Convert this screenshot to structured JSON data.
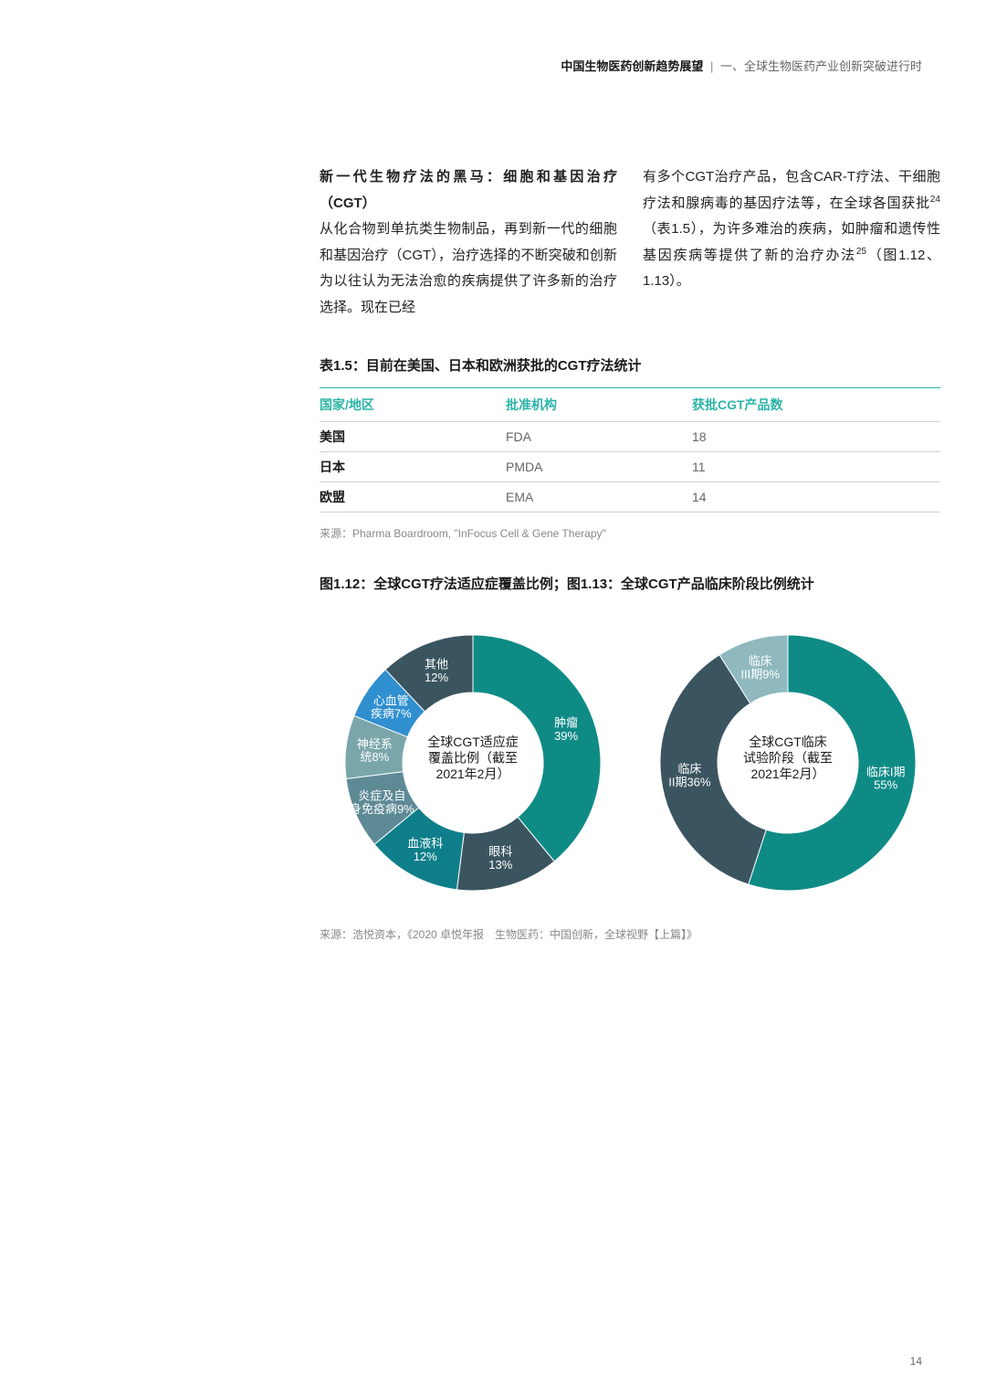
{
  "header": {
    "title_bold": "中国生物医药创新趋势展望",
    "separator": "|",
    "subtitle": "一、全球生物医药产业创新突破进行时"
  },
  "section": {
    "heading": "新一代生物疗法的黑马：细胞和基因治疗（CGT）",
    "para_left": "从化合物到单抗类生物制品，再到新一代的细胞和基因治疗（CGT），治疗选择的不断突破和创新为以往认为无法治愈的疾病提供了许多新的治疗选择。现在已经",
    "para_right_a": "有多个CGT治疗产品，包含CAR-T疗法、干细胞疗法和腺病毒的基因疗法等，在全球各国获批",
    "sup1": "24",
    "para_right_b": "（表1.5），为许多难治的疾病，如肿瘤和遗传性基因疾病等提供了新的治疗办法",
    "sup2": "25",
    "para_right_c": "（图1.12、1.13）。"
  },
  "table": {
    "title": "表1.5：目前在美国、日本和欧洲获批的CGT疗法统计",
    "columns": [
      "国家/地区",
      "批准机构",
      "获批CGT产品数"
    ],
    "rows": [
      [
        "美国",
        "FDA",
        "18"
      ],
      [
        "日本",
        "PMDA",
        "11"
      ],
      [
        "欧盟",
        "EMA",
        "14"
      ]
    ],
    "source": "来源：Pharma Boardroom, \"InFocus Cell & Gene Therapy\""
  },
  "charts": {
    "title": "图1.12：全球CGT疗法适应症覆盖比例；图1.13：全球CGT产品临床阶段比例统计",
    "donut_inner_ratio": 0.55,
    "label_fontsize": 13,
    "label_color": "#ffffff",
    "center_fontsize": 14,
    "center_color": "#1a1a1a",
    "pie1": {
      "center_lines": [
        "全球CGT适应症",
        "覆盖比例（截至",
        "2021年2月）"
      ],
      "slices": [
        {
          "label": "肿瘤",
          "pct": 39,
          "value_label": "39%",
          "color": "#0f8b86"
        },
        {
          "label": "眼科",
          "pct": 13,
          "value_label": "13%",
          "color": "#3b5560"
        },
        {
          "label": "血液科",
          "pct": 12,
          "value_label": "12%",
          "color": "#0e7f8a"
        },
        {
          "label": "炎症及自身免疫病",
          "pct": 9,
          "value_label": "9%",
          "color": "#5e8a96",
          "two_line": [
            "炎症及自",
            "身免疫病9%"
          ]
        },
        {
          "label": "神经系统",
          "pct": 8,
          "value_label": "8%",
          "color": "#7aa6ab",
          "two_line": [
            "神经系",
            "统8%"
          ]
        },
        {
          "label": "心血管疾病",
          "pct": 7,
          "value_label": "7%",
          "color": "#2f8fcf",
          "two_line": [
            "心血管",
            "疾病7%"
          ]
        },
        {
          "label": "其他",
          "pct": 12,
          "value_label": "12%",
          "color": "#3b5560"
        }
      ]
    },
    "pie2": {
      "center_lines": [
        "全球CGT临床",
        "试验阶段（截至",
        "2021年2月）"
      ],
      "slices": [
        {
          "label": "临床I期",
          "pct": 55,
          "value_label": "55%",
          "color": "#0f8b86",
          "two_line": [
            "临床I期",
            "55%"
          ]
        },
        {
          "label": "临床II期",
          "pct": 36,
          "value_label": "36%",
          "color": "#3b5560",
          "two_line": [
            "临床",
            "II期36%"
          ]
        },
        {
          "label": "临床III期",
          "pct": 9,
          "value_label": "9%",
          "color": "#8fb9bf",
          "two_line": [
            "临床",
            "III期9%"
          ]
        }
      ]
    },
    "source": "来源：浩悦资本，《2020 卓悦年报　生物医药：中国创新，全球视野【上篇】》"
  },
  "page_number": "14"
}
